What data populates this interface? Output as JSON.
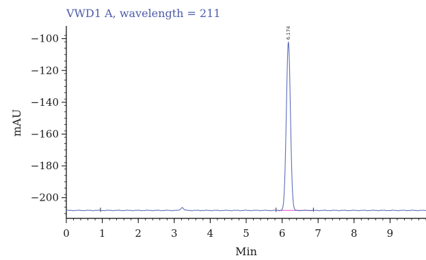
{
  "chart_data": {
    "type": "line",
    "title": "VWD1 A, wavelength = 211",
    "xlabel": "Min",
    "ylabel": "mAU",
    "xlim": [
      0,
      10
    ],
    "ylim": [
      -213,
      -92
    ],
    "x_ticks": [
      0,
      1,
      2,
      3,
      4,
      5,
      6,
      7,
      8,
      9
    ],
    "x_tick_labels": [
      "0",
      "1",
      "2",
      "3",
      "4",
      "5",
      "6",
      "7",
      "8",
      "9"
    ],
    "y_ticks": [
      -100,
      -120,
      -140,
      -160,
      -180,
      -200
    ],
    "y_tick_labels": [
      "−100",
      "−120",
      "−140",
      "−160",
      "−180",
      "−200"
    ],
    "grid": false,
    "series": [
      {
        "color": "#5b6bb8",
        "baseline": -208,
        "peak": {
          "x": 6.174,
          "y": -102,
          "sigma": 0.055
        },
        "bump": {
          "x": 3.22,
          "y": -206.2,
          "sigma": 0.04
        }
      }
    ],
    "annotations": [
      {
        "text": "6.174",
        "x": 6.174
      }
    ],
    "baseline_segment": {
      "x": [
        5.83,
        6.87
      ],
      "y": -208,
      "color": "#e060c0"
    },
    "integration_marks": [
      0.95,
      5.83,
      6.87
    ]
  },
  "colors": {
    "title": "#4b5aa8",
    "trace": "#5b6bb8",
    "baseline": "#e060c0",
    "axis": "#000000"
  }
}
